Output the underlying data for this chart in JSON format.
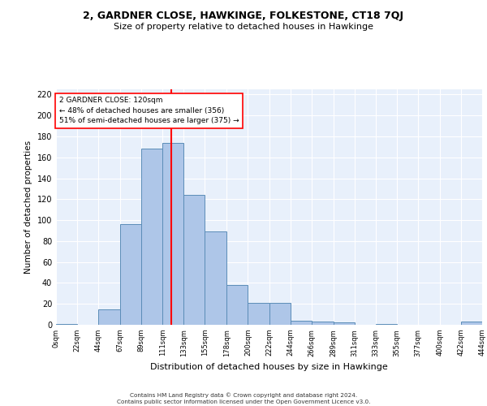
{
  "title": "2, GARDNER CLOSE, HAWKINGE, FOLKESTONE, CT18 7QJ",
  "subtitle": "Size of property relative to detached houses in Hawkinge",
  "xlabel": "Distribution of detached houses by size in Hawkinge",
  "ylabel": "Number of detached properties",
  "bin_edges": [
    0,
    22,
    44,
    67,
    89,
    111,
    133,
    155,
    178,
    200,
    222,
    244,
    266,
    289,
    311,
    333,
    355,
    377,
    400,
    422,
    444
  ],
  "bin_labels": [
    "0sqm",
    "22sqm",
    "44sqm",
    "67sqm",
    "89sqm",
    "111sqm",
    "133sqm",
    "155sqm",
    "178sqm",
    "200sqm",
    "222sqm",
    "244sqm",
    "266sqm",
    "289sqm",
    "311sqm",
    "333sqm",
    "355sqm",
    "377sqm",
    "400sqm",
    "422sqm",
    "444sqm"
  ],
  "bar_heights": [
    1,
    0,
    15,
    96,
    168,
    174,
    124,
    89,
    38,
    21,
    21,
    4,
    3,
    2,
    0,
    1,
    0,
    0,
    0,
    3
  ],
  "bar_color": "#aec6e8",
  "bar_edge_color": "#5b8db8",
  "property_line_x": 120,
  "property_line_color": "red",
  "annotation_line1": "2 GARDNER CLOSE: 120sqm",
  "annotation_line2": "← 48% of detached houses are smaller (356)",
  "annotation_line3": "51% of semi-detached houses are larger (375) →",
  "annotation_box_color": "white",
  "annotation_box_edge_color": "red",
  "ylim": [
    0,
    225
  ],
  "yticks": [
    0,
    20,
    40,
    60,
    80,
    100,
    120,
    140,
    160,
    180,
    200,
    220
  ],
  "background_color": "#e8f0fb",
  "grid_color": "white",
  "footer_line1": "Contains HM Land Registry data © Crown copyright and database right 2024.",
  "footer_line2": "Contains public sector information licensed under the Open Government Licence v3.0."
}
